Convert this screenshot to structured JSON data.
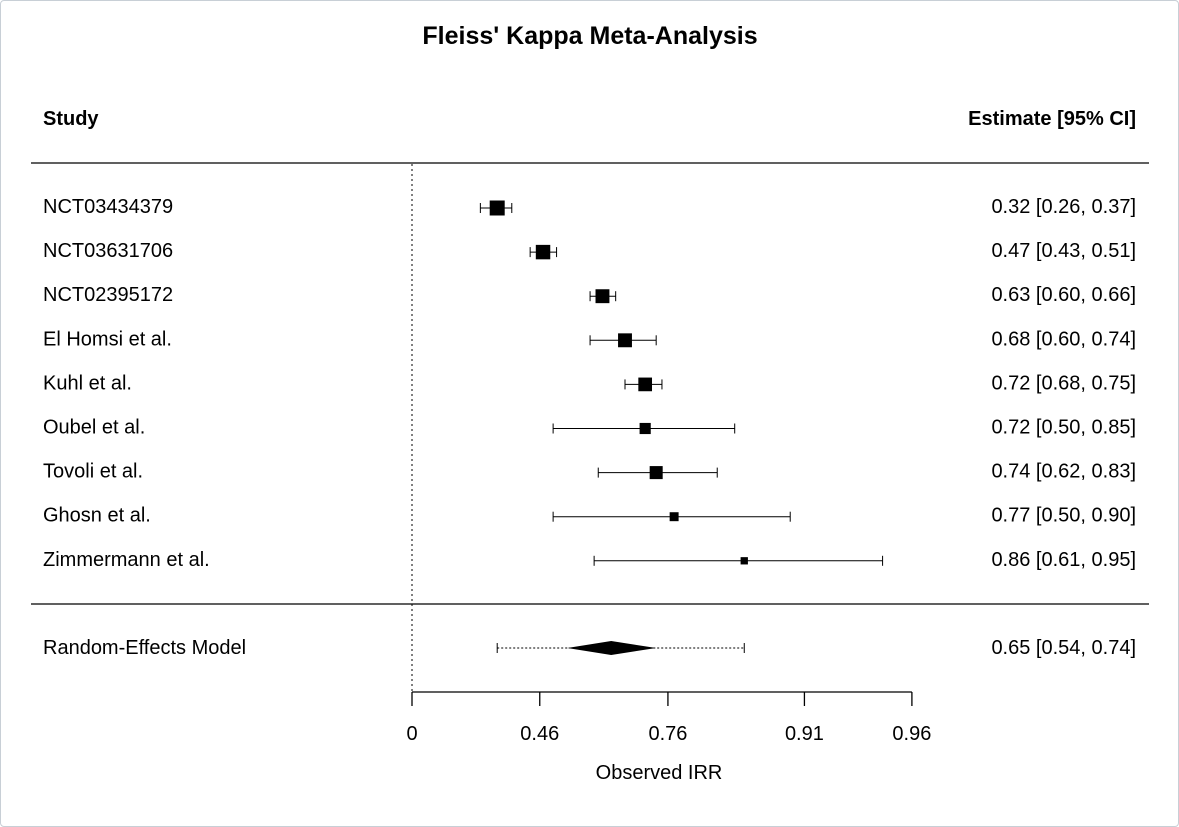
{
  "chart_data": {
    "type": "forest",
    "title": "Fleiss' Kappa Meta-Analysis",
    "column_headers": {
      "study": "Study",
      "estimate": "Estimate [95% CI]"
    },
    "studies": [
      {
        "name": "NCT03434379",
        "estimate": 0.32,
        "ci_low": 0.26,
        "ci_high": 0.37,
        "label": "0.32 [0.26, 0.37]",
        "weight": 1.0
      },
      {
        "name": "NCT03631706",
        "estimate": 0.47,
        "ci_low": 0.43,
        "ci_high": 0.51,
        "label": "0.47 [0.43, 0.51]",
        "weight": 0.95
      },
      {
        "name": "NCT02395172",
        "estimate": 0.63,
        "ci_low": 0.6,
        "ci_high": 0.66,
        "label": "0.63 [0.60, 0.66]",
        "weight": 0.9
      },
      {
        "name": "El Homsi et al.",
        "estimate": 0.68,
        "ci_low": 0.6,
        "ci_high": 0.74,
        "label": "0.68 [0.60, 0.74]",
        "weight": 0.9
      },
      {
        "name": "Kuhl et al.",
        "estimate": 0.72,
        "ci_low": 0.68,
        "ci_high": 0.75,
        "label": "0.72 [0.68, 0.75]",
        "weight": 0.88
      },
      {
        "name": "Oubel et al.",
        "estimate": 0.72,
        "ci_low": 0.5,
        "ci_high": 0.85,
        "label": "0.72 [0.50, 0.85]",
        "weight": 0.65
      },
      {
        "name": "Tovoli et al.",
        "estimate": 0.74,
        "ci_low": 0.62,
        "ci_high": 0.83,
        "label": "0.74 [0.62, 0.83]",
        "weight": 0.82
      },
      {
        "name": "Ghosn et al.",
        "estimate": 0.77,
        "ci_low": 0.5,
        "ci_high": 0.9,
        "label": "0.77 [0.50, 0.90]",
        "weight": 0.45
      },
      {
        "name": "Zimmermann et al.",
        "estimate": 0.86,
        "ci_low": 0.61,
        "ci_high": 0.95,
        "label": "0.86 [0.61, 0.95]",
        "weight": 0.3
      }
    ],
    "summary": {
      "name": "Random-Effects Model",
      "estimate": 0.65,
      "ci_low": 0.54,
      "ci_high": 0.74,
      "pi_low": 0.32,
      "pi_high": 0.86,
      "label": "0.65 [0.54, 0.74]"
    },
    "x_axis": {
      "label": "Observed IRR",
      "tick_values": [
        0,
        0.46,
        0.76,
        0.91,
        0.96
      ],
      "tick_labels": [
        "0",
        "0.46",
        "0.76",
        "0.91",
        "0.96"
      ],
      "transform": "fisher-z",
      "reference_line": 0
    }
  }
}
